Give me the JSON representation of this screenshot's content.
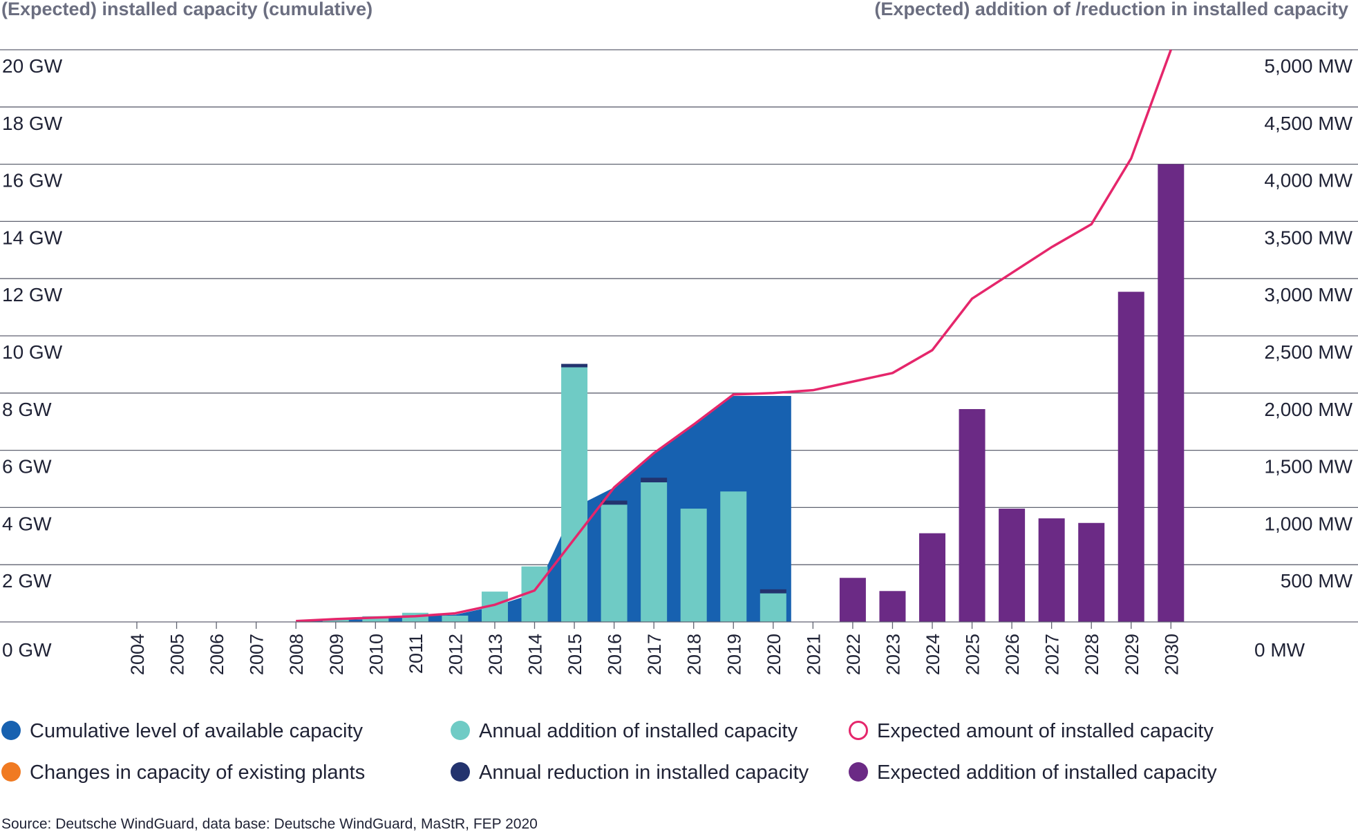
{
  "chart_data": {
    "type": "bar",
    "left_axis_title": "(Expected) installed capacity (cumulative)",
    "right_axis_title": "(Expected) addition of /reduction in installed capacity",
    "left_ticks": [
      "0 GW",
      "2 GW",
      "4 GW",
      "6 GW",
      "8 GW",
      "10 GW",
      "12 GW",
      "14 GW",
      "16 GW",
      "18 GW",
      "20 GW"
    ],
    "right_ticks": [
      "0 MW",
      "500 MW",
      "1,000 MW",
      "1,500 MW",
      "2,000 MW",
      "2,500 MW",
      "3,000 MW",
      "3,500 MW",
      "4,000 MW",
      "4,500 MW",
      "5,000 MW"
    ],
    "left_ylim": [
      0,
      20
    ],
    "right_ylim": [
      0,
      5000
    ],
    "categories": [
      "2004",
      "2005",
      "2006",
      "2007",
      "2008",
      "2009",
      "2010",
      "2011",
      "2012",
      "2013",
      "2014",
      "2015",
      "2016",
      "2017",
      "2018",
      "2019",
      "2020",
      "2021",
      "2022",
      "2023",
      "2024",
      "2025",
      "2026",
      "2027",
      "2028",
      "2029",
      "2030"
    ],
    "series": [
      {
        "name": "Cumulative level of available capacity",
        "axis": "left",
        "kind": "area",
        "values": [
          0,
          0,
          0,
          0,
          0,
          0.07,
          0.1,
          0.2,
          0.25,
          0.55,
          1.0,
          4.0,
          4.7,
          5.9,
          6.9,
          7.9,
          7.9,
          null,
          null,
          null,
          null,
          null,
          null,
          null,
          null,
          null,
          null
        ]
      },
      {
        "name": "Annual addition of installed capacity",
        "axis": "right",
        "kind": "bar",
        "values": [
          0,
          0,
          0,
          0,
          0,
          18,
          50,
          80,
          55,
          265,
          485,
          2225,
          1025,
          1220,
          990,
          1140,
          250,
          0,
          0,
          0,
          0,
          0,
          0,
          0,
          0,
          0,
          0
        ]
      },
      {
        "name": "Annual reduction in installed capacity",
        "axis": "right",
        "kind": "bar-stacked",
        "values": [
          0,
          0,
          0,
          0,
          0,
          0,
          0,
          0,
          0,
          0,
          0,
          30,
          35,
          40,
          0,
          0,
          35,
          0,
          0,
          0,
          0,
          0,
          0,
          0,
          0,
          0,
          0
        ]
      },
      {
        "name": "Changes in capacity of existing plants",
        "axis": "right",
        "kind": "bar",
        "values": [
          0,
          0,
          0,
          0,
          0,
          0,
          0,
          0,
          0,
          0,
          0,
          0,
          0,
          0,
          0,
          0,
          0,
          0,
          0,
          0,
          0,
          0,
          0,
          0,
          0,
          0,
          0
        ]
      },
      {
        "name": "Expected amount of installed capacity",
        "axis": "left",
        "kind": "line",
        "values": [
          null,
          null,
          null,
          null,
          0.03,
          0.1,
          0.15,
          0.2,
          0.3,
          0.6,
          1.1,
          2.9,
          4.7,
          5.9,
          6.9,
          7.95,
          8.0,
          8.1,
          8.4,
          8.7,
          9.5,
          11.3,
          12.2,
          13.1,
          13.9,
          16.2,
          20.0
        ]
      },
      {
        "name": "Expected addition of installed capacity",
        "axis": "right",
        "kind": "bar",
        "values": [
          0,
          0,
          0,
          0,
          0,
          0,
          0,
          0,
          0,
          0,
          0,
          0,
          0,
          0,
          0,
          0,
          0,
          0,
          385,
          270,
          775,
          1860,
          990,
          905,
          865,
          2885,
          4000
        ]
      }
    ],
    "colors": {
      "cumulative": "#1761b0",
      "annual_addition": "#6fcbc5",
      "annual_reduction": "#23336e",
      "changes_existing": "#f07a22",
      "expected_line": "#e5266b",
      "expected_addition": "#6b2a85",
      "grid": "#5f6270"
    },
    "legend": [
      {
        "label": "Cumulative level of available capacity",
        "marker": "filled",
        "color": "#1761b0"
      },
      {
        "label": "Annual addition of installed capacity",
        "marker": "filled",
        "color": "#6fcbc5"
      },
      {
        "label": "Expected amount of installed capacity",
        "marker": "ring",
        "color": "#e5266b"
      },
      {
        "label": "Changes in capacity of existing plants",
        "marker": "filled",
        "color": "#f07a22"
      },
      {
        "label": "Annual reduction in installed capacity",
        "marker": "filled",
        "color": "#23336e"
      },
      {
        "label": "Expected addition of installed capacity",
        "marker": "filled",
        "color": "#6b2a85"
      }
    ],
    "legend_position": "bottom",
    "grid": true,
    "source": "Source: Deutsche WindGuard, data base: Deutsche WindGuard, MaStR, FEP 2020"
  }
}
